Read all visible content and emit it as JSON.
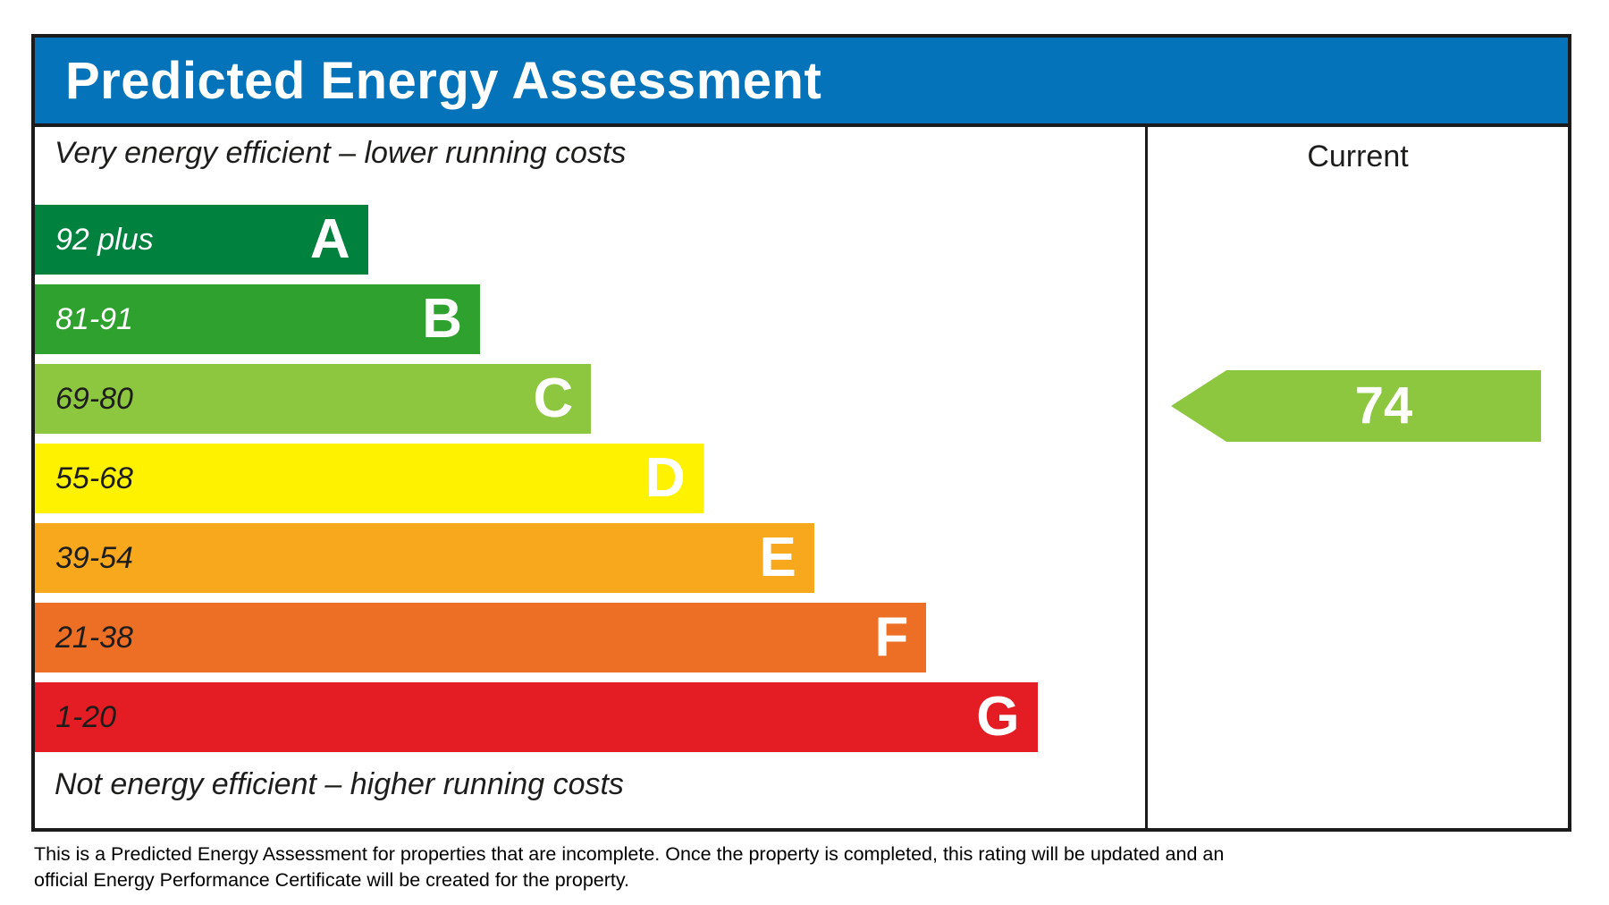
{
  "header": {
    "title": "Predicted Energy Assessment",
    "bg_color": "#0473BA"
  },
  "scale": {
    "top_note": "Very energy efficient – lower running costs",
    "bottom_note": "Not energy efficient – higher running costs",
    "bands": [
      {
        "letter": "A",
        "range": "92 plus",
        "color": "#00813E",
        "range_text_color": "#ffffff",
        "width_pct": 30.0
      },
      {
        "letter": "B",
        "range": "81-91",
        "color": "#2EA12F",
        "range_text_color": "#ffffff",
        "width_pct": 40.1
      },
      {
        "letter": "C",
        "range": "69-80",
        "color": "#8DC63F",
        "range_text_color": "#1d1d1b",
        "width_pct": 50.1
      },
      {
        "letter": "D",
        "range": "55-68",
        "color": "#FFF200",
        "range_text_color": "#1d1d1b",
        "width_pct": 60.2
      },
      {
        "letter": "E",
        "range": "39-54",
        "color": "#F7A81C",
        "range_text_color": "#1d1d1b",
        "width_pct": 70.2
      },
      {
        "letter": "F",
        "range": "21-38",
        "color": "#ED6E25",
        "range_text_color": "#1d1d1b",
        "width_pct": 80.3
      },
      {
        "letter": "G",
        "range": "1-20",
        "color": "#E31D23",
        "range_text_color": "#1d1d1b",
        "width_pct": 90.3
      }
    ]
  },
  "current": {
    "label": "Current",
    "value": "74",
    "band": "C",
    "arrow_color": "#8DC63F"
  },
  "footer": {
    "lines": [
      "This is a Predicted Energy Assessment for properties that are incomplete. Once the property is completed, this rating will be updated and an",
      "official Energy Performance Certificate will be created for the property."
    ]
  },
  "chart_data": {
    "type": "bar",
    "title": "Predicted Energy Assessment",
    "orientation": "horizontal",
    "categories": [
      "A",
      "B",
      "C",
      "D",
      "E",
      "F",
      "G"
    ],
    "category_score_ranges": [
      "92 plus",
      "81-91",
      "69-80",
      "55-68",
      "39-54",
      "21-38",
      "1-20"
    ],
    "bar_width_pct_of_column": [
      30.0,
      40.1,
      50.1,
      60.2,
      70.2,
      80.3,
      90.3
    ],
    "bar_colors": [
      "#00813E",
      "#2EA12F",
      "#8DC63F",
      "#FFF200",
      "#F7A81C",
      "#ED6E25",
      "#E31D23"
    ],
    "current_rating": {
      "value": 74,
      "band": "C"
    },
    "columns": [
      "Current"
    ],
    "annotations": [
      "Very energy efficient – lower running costs",
      "Not energy efficient – higher running costs"
    ],
    "legend_position": "none",
    "grid": false
  }
}
